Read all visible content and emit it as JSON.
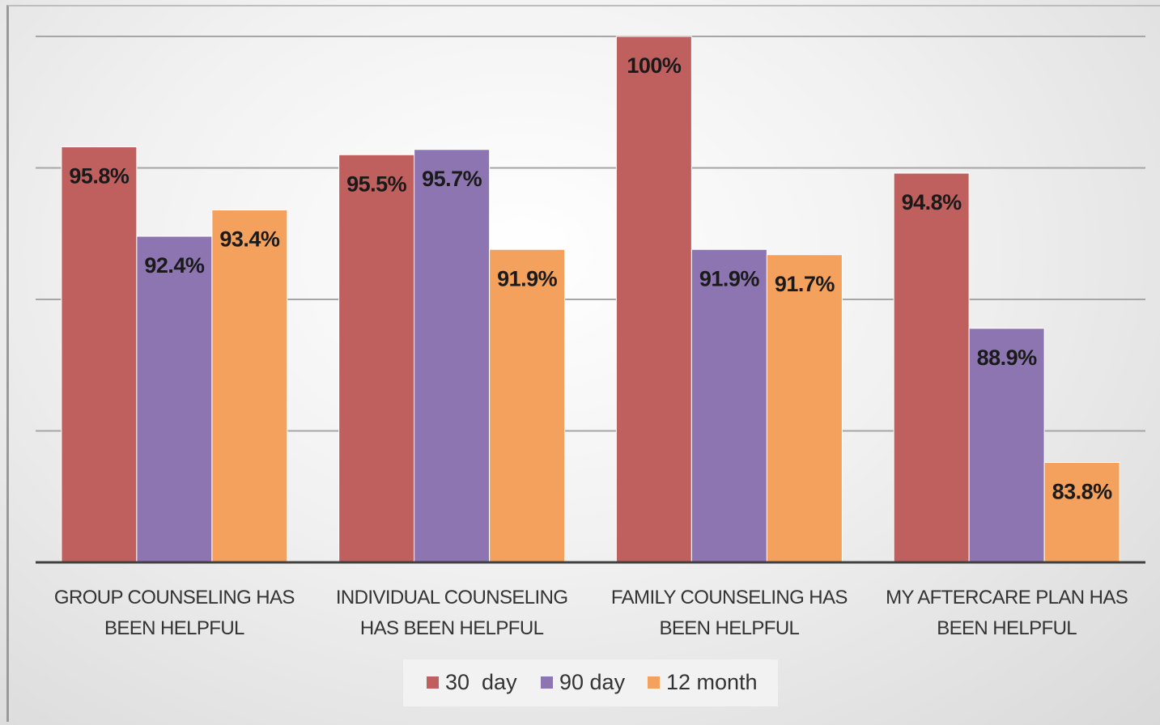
{
  "chart_data": {
    "type": "bar",
    "categories": [
      "GROUP COUNSELING HAS BEEN HELPFUL",
      "INDIVIDUAL COUNSELING HAS BEEN HELPFUL",
      "FAMILY COUNSELING HAS BEEN HELPFUL",
      "MY AFTERCARE PLAN HAS BEEN HELPFUL"
    ],
    "series": [
      {
        "name": "30  day",
        "color": "#c0605e",
        "values": [
          95.8,
          95.5,
          100,
          94.8
        ],
        "value_labels": [
          "95.8%",
          "95.5%",
          "100%",
          "94.8%"
        ]
      },
      {
        "name": "90 day",
        "color": "#8c75b0",
        "values": [
          92.4,
          95.7,
          91.9,
          88.9
        ],
        "value_labels": [
          "92.4%",
          "95.7%",
          "91.9%",
          "88.9%"
        ]
      },
      {
        "name": "12 month",
        "color": "#f4a15d",
        "values": [
          93.4,
          91.9,
          91.7,
          83.8
        ],
        "value_labels": [
          "93.4%",
          "91.9%",
          "91.7%",
          "83.8%"
        ]
      }
    ],
    "ylim": [
      80,
      100
    ],
    "yticks": [
      80,
      85,
      90,
      95,
      100
    ],
    "grid": true,
    "show_ytick_labels": false,
    "legend": "bottom"
  }
}
